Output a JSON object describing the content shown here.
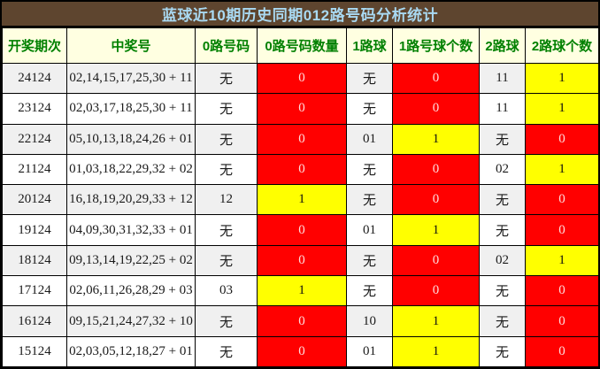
{
  "chart_data": {
    "type": "table",
    "title": "蓝球近10期历史同期012路号码分析统计",
    "columns": [
      "开奖期次",
      "中奖号",
      "0路号码",
      "0路号码数量",
      "1路球",
      "1路号球个数",
      "2路球",
      "2路球个数"
    ],
    "rows": [
      [
        "24124",
        "02,14,15,17,25,30 + 11",
        "无",
        "0",
        "无",
        "0",
        "11",
        "1"
      ],
      [
        "23124",
        "02,03,17,18,25,30 + 11",
        "无",
        "0",
        "无",
        "0",
        "11",
        "1"
      ],
      [
        "22124",
        "05,10,13,18,24,26 + 01",
        "无",
        "0",
        "01",
        "1",
        "无",
        "0"
      ],
      [
        "21124",
        "01,03,18,22,29,32 + 02",
        "无",
        "0",
        "无",
        "0",
        "02",
        "1"
      ],
      [
        "20124",
        "16,18,19,20,29,33 + 12",
        "12",
        "1",
        "无",
        "0",
        "无",
        "0"
      ],
      [
        "19124",
        "04,09,30,31,32,33 + 01",
        "无",
        "0",
        "01",
        "1",
        "无",
        "0"
      ],
      [
        "18124",
        "09,13,14,19,22,25 + 02",
        "无",
        "0",
        "无",
        "0",
        "02",
        "1"
      ],
      [
        "17124",
        "02,06,11,26,28,29 + 03",
        "03",
        "1",
        "无",
        "0",
        "无",
        "0"
      ],
      [
        "16124",
        "09,15,21,24,27,32 + 10",
        "无",
        "0",
        "10",
        "1",
        "无",
        "0"
      ],
      [
        "15124",
        "02,03,05,12,18,27 + 01",
        "无",
        "0",
        "01",
        "1",
        "无",
        "0"
      ]
    ],
    "count_highlight_rule": {
      "0": "red",
      "1": "yellow"
    }
  },
  "colors": {
    "frame": "#000000",
    "title_bg": "#5E452F",
    "title_text": "#A9D9F2",
    "header_bg": "#FFFFE1",
    "header_text": "#008000",
    "row_alt_bg": "#F0F0F0",
    "row_bg": "#FFFFFF",
    "highlight_red": "#FF0000",
    "highlight_red_text": "#FFDCDC",
    "highlight_yellow": "#FFFF00"
  }
}
